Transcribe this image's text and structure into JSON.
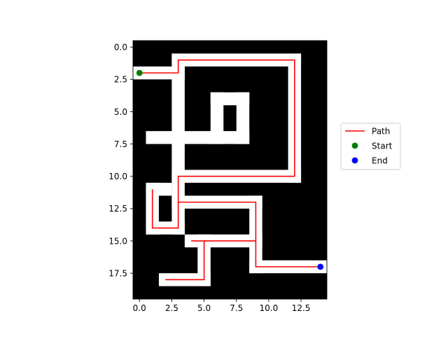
{
  "chart_data": {
    "type": "heatmap",
    "title": "",
    "xlabel": "",
    "ylabel": "",
    "grid": false,
    "legend_position": "center-right",
    "x_range": [
      -0.5,
      14.5
    ],
    "y_range": [
      19.5,
      -0.5
    ],
    "x_ticks": [
      0.0,
      2.5,
      5.0,
      7.5,
      10.0,
      12.5
    ],
    "y_ticks": [
      0.0,
      2.5,
      5.0,
      7.5,
      10.0,
      12.5,
      15.0,
      17.5
    ],
    "x_tick_labels": [
      "0.0",
      "2.5",
      "5.0",
      "7.5",
      "10.0",
      "12.5"
    ],
    "y_tick_labels": [
      "0.0",
      "2.5",
      "5.0",
      "7.5",
      "10.0",
      "12.5",
      "15.0",
      "17.5"
    ],
    "grid_size": {
      "rows": 20,
      "cols": 15
    },
    "colors": {
      "wall": "#000000",
      "open": "#ffffff",
      "path": "#ff0000",
      "start": "#008000",
      "end": "#0000ff"
    },
    "maze_rows": [
      "000000000000000",
      "000000000000000",
      "000000000000000",
      "000000000000000",
      "000000000000000",
      "000000000000000",
      "000000000000000",
      "000000000000000",
      "000000000000000",
      "000000000000000",
      "000000000000000",
      "000000000000000",
      "000000000000000",
      "000000000000000",
      "000000000000000",
      "000000000000000",
      "000000000000000",
      "000000000000000",
      "000000000000000",
      "000000000000000"
    ],
    "open_segments": [
      {
        "from": [
          0,
          2
        ],
        "to": [
          3,
          2
        ]
      },
      {
        "from": [
          3,
          1
        ],
        "to": [
          12,
          1
        ]
      },
      {
        "from": [
          12,
          1
        ],
        "to": [
          12,
          10
        ]
      },
      {
        "from": [
          3,
          10
        ],
        "to": [
          12,
          10
        ]
      },
      {
        "from": [
          3,
          1
        ],
        "to": [
          3,
          14
        ]
      },
      {
        "from": [
          1,
          7
        ],
        "to": [
          8,
          7
        ]
      },
      {
        "from": [
          6,
          4
        ],
        "to": [
          8,
          4
        ]
      },
      {
        "from": [
          6,
          4
        ],
        "to": [
          6,
          7
        ]
      },
      {
        "from": [
          8,
          4
        ],
        "to": [
          8,
          7
        ]
      },
      {
        "from": [
          1,
          11
        ],
        "to": [
          1,
          14
        ]
      },
      {
        "from": [
          1,
          14
        ],
        "to": [
          3,
          14
        ]
      },
      {
        "from": [
          1,
          11
        ],
        "to": [
          2,
          11
        ]
      },
      {
        "from": [
          3,
          12
        ],
        "to": [
          9,
          12
        ]
      },
      {
        "from": [
          9,
          12
        ],
        "to": [
          9,
          17
        ]
      },
      {
        "from": [
          4,
          15
        ],
        "to": [
          9,
          15
        ]
      },
      {
        "from": [
          5,
          15
        ],
        "to": [
          5,
          18
        ]
      },
      {
        "from": [
          2,
          18
        ],
        "to": [
          5,
          18
        ]
      },
      {
        "from": [
          9,
          17
        ],
        "to": [
          14,
          17
        ]
      }
    ],
    "series": [
      {
        "name": "Path",
        "kind": "line",
        "color": "#ff0000",
        "x": [
          0,
          3,
          3,
          12,
          12,
          3,
          3,
          1,
          1
        ],
        "y": [
          2,
          2,
          1,
          1,
          10,
          10,
          14,
          14,
          11
        ]
      },
      {
        "name": "",
        "kind": "line",
        "color": "#ff0000",
        "x": [
          3,
          9,
          9,
          14
        ],
        "y": [
          12,
          12,
          17,
          17
        ]
      },
      {
        "name": "",
        "kind": "line",
        "color": "#ff0000",
        "x": [
          4,
          9
        ],
        "y": [
          15,
          15
        ]
      },
      {
        "name": "",
        "kind": "line",
        "color": "#ff0000",
        "x": [
          5,
          5,
          2
        ],
        "y": [
          15,
          18,
          18
        ]
      },
      {
        "name": "Start",
        "kind": "point",
        "color": "#008000",
        "x": [
          0
        ],
        "y": [
          2
        ]
      },
      {
        "name": "End",
        "kind": "point",
        "color": "#0000ff",
        "x": [
          14
        ],
        "y": [
          17
        ]
      }
    ],
    "legend": [
      {
        "label": "Path",
        "kind": "line",
        "color": "#ff0000"
      },
      {
        "label": "Start",
        "kind": "point",
        "color": "#008000"
      },
      {
        "label": "End",
        "kind": "point",
        "color": "#0000ff"
      }
    ]
  }
}
